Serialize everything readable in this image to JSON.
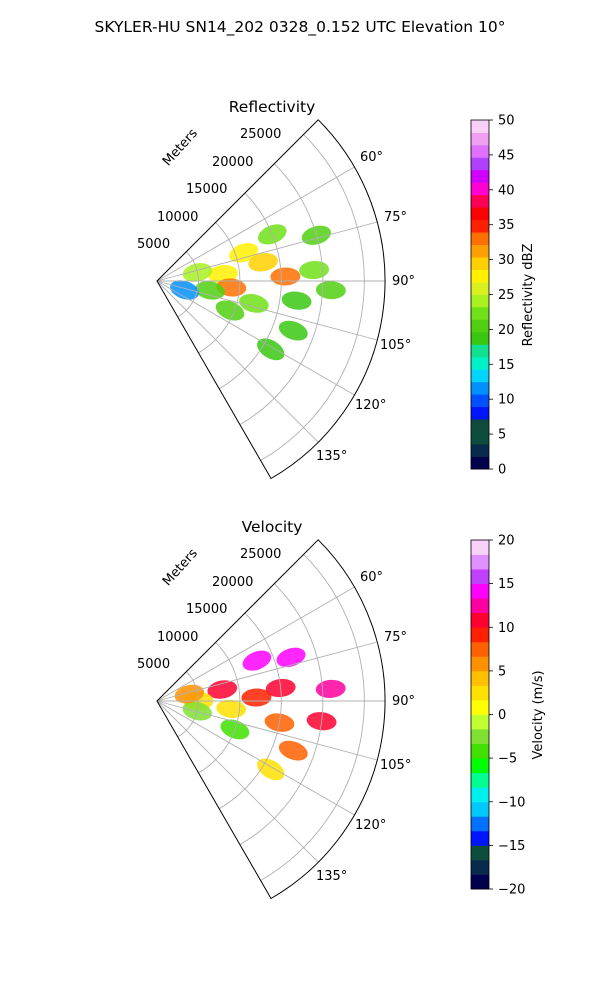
{
  "figure_title": "SKYLER-HU  SN14_202  0328_0.152 UTC Elevation 10°",
  "colors": {
    "reflectivity_scale": [
      "#00004d",
      "#0a2a4d",
      "#0d4d3d",
      "#104a3a",
      "#0014ff",
      "#0050ff",
      "#0090ff",
      "#00d5ff",
      "#00f0c8",
      "#10e090",
      "#38c810",
      "#50d010",
      "#70e018",
      "#a8f020",
      "#d8f020",
      "#fff000",
      "#ffd000",
      "#ffa000",
      "#ff7000",
      "#ff2000",
      "#ff0000",
      "#ff0055",
      "#ff00d0",
      "#d000ff",
      "#b040ff",
      "#e070ff",
      "#f0a0f0",
      "#f8d0f8"
    ],
    "velocity_scale": [
      "#00004d",
      "#0a2a4d",
      "#0d4d3d",
      "#0014ff",
      "#0070ff",
      "#00c8ff",
      "#00f0f0",
      "#00ff90",
      "#00ff00",
      "#40e000",
      "#80e030",
      "#c0ff30",
      "#ffff00",
      "#ffe000",
      "#ffc000",
      "#ff9000",
      "#ff6000",
      "#ff2000",
      "#ff0030",
      "#ff00a0",
      "#ff00ff",
      "#c040ff",
      "#e090ff",
      "#f8d0f8"
    ]
  },
  "chart_data": [
    {
      "type": "heatmap",
      "projection": "polar sector (PPI)",
      "title": "Reflectivity",
      "radial_label": "Meters",
      "radial_ticks": [
        5000,
        10000,
        15000,
        20000,
        25000
      ],
      "radial_tick_labels": [
        "5000",
        "10000",
        "15000",
        "20000",
        "25000"
      ],
      "rlim": [
        0,
        27500
      ],
      "azimuth_range_deg": [
        45,
        150
      ],
      "azimuth_ticks": [
        60,
        75,
        90,
        105,
        120,
        135
      ],
      "azimuth_tick_labels": [
        "60°",
        "75°",
        "90°",
        "105°",
        "120°",
        "135°"
      ],
      "grid": true,
      "colorbar": {
        "label": "Reflectivity dBZ",
        "vmin": 0,
        "vmax": 50,
        "ticks": [
          0,
          5,
          10,
          15,
          20,
          25,
          30,
          35,
          40,
          45,
          50
        ],
        "tick_labels": [
          "0",
          "5",
          "10",
          "15",
          "20",
          "25",
          "30",
          "35",
          "40",
          "45",
          "50"
        ]
      },
      "echo_cells": [
        {
          "az": 72,
          "r": 11000,
          "value": 28
        },
        {
          "az": 68,
          "r": 15000,
          "value": 22
        },
        {
          "az": 80,
          "r": 13000,
          "value": 30
        },
        {
          "az": 84,
          "r": 8000,
          "value": 27
        },
        {
          "az": 88,
          "r": 15500,
          "value": 33
        },
        {
          "az": 86,
          "r": 19000,
          "value": 23
        },
        {
          "az": 95,
          "r": 9000,
          "value": 33
        },
        {
          "az": 100,
          "r": 6500,
          "value": 20
        },
        {
          "az": 103,
          "r": 12000,
          "value": 22
        },
        {
          "az": 112,
          "r": 9500,
          "value": 20
        },
        {
          "az": 108,
          "r": 3500,
          "value": 12
        },
        {
          "az": 74,
          "r": 20000,
          "value": 20
        },
        {
          "az": 98,
          "r": 17000,
          "value": 19
        },
        {
          "az": 93,
          "r": 21000,
          "value": 20
        },
        {
          "az": 121,
          "r": 16000,
          "value": 19
        },
        {
          "az": 110,
          "r": 17500,
          "value": 19
        },
        {
          "az": 78,
          "r": 5000,
          "value": 24
        }
      ]
    },
    {
      "type": "heatmap",
      "projection": "polar sector (PPI)",
      "title": "Velocity",
      "radial_label": "Meters",
      "radial_ticks": [
        5000,
        10000,
        15000,
        20000,
        25000
      ],
      "radial_tick_labels": [
        "5000",
        "10000",
        "15000",
        "20000",
        "25000"
      ],
      "rlim": [
        0,
        27500
      ],
      "azimuth_range_deg": [
        45,
        150
      ],
      "azimuth_ticks": [
        60,
        75,
        90,
        105,
        120,
        135
      ],
      "azimuth_tick_labels": [
        "60°",
        "75°",
        "90°",
        "105°",
        "120°",
        "135°"
      ],
      "grid": true,
      "colorbar": {
        "label": "Velocity (m/s)",
        "vmin": -20,
        "vmax": 20,
        "ticks": [
          -20,
          -15,
          -10,
          -5,
          0,
          5,
          10,
          15,
          20
        ],
        "tick_labels": [
          "−20",
          "−15",
          "−10",
          "−5",
          "0",
          "5",
          "10",
          "15",
          "20"
        ]
      },
      "echo_cells": [
        {
          "az": 68,
          "r": 13000,
          "value": 14
        },
        {
          "az": 72,
          "r": 17000,
          "value": 14
        },
        {
          "az": 80,
          "r": 8000,
          "value": 10
        },
        {
          "az": 84,
          "r": 15000,
          "value": 10
        },
        {
          "az": 88,
          "r": 12000,
          "value": 9
        },
        {
          "az": 90,
          "r": 5000,
          "value": 3
        },
        {
          "az": 96,
          "r": 9000,
          "value": 2
        },
        {
          "az": 100,
          "r": 15000,
          "value": 8
        },
        {
          "az": 104,
          "r": 5000,
          "value": -3
        },
        {
          "az": 110,
          "r": 10000,
          "value": -4
        },
        {
          "az": 86,
          "r": 21000,
          "value": 13
        },
        {
          "az": 97,
          "r": 20000,
          "value": 10
        },
        {
          "az": 121,
          "r": 16000,
          "value": 3
        },
        {
          "az": 110,
          "r": 17500,
          "value": 8
        },
        {
          "az": 78,
          "r": 4000,
          "value": 5
        }
      ]
    }
  ]
}
